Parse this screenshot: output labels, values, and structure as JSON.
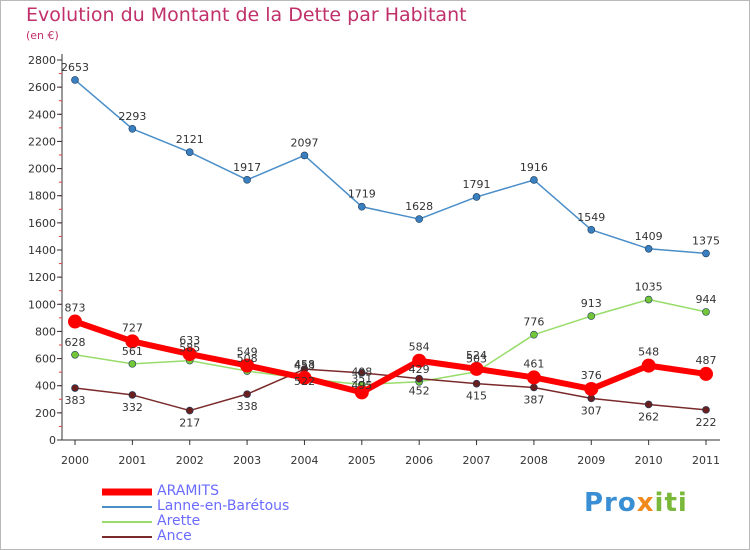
{
  "title": "Evolution du Montant de la Dette par Habitant",
  "subtitle": "(en €)",
  "logo": {
    "part1": "Pro",
    "part2": "x",
    "part3": "iti"
  },
  "chart_data": {
    "type": "line",
    "title": "Evolution du Montant de la Dette par Habitant",
    "ylabel": "(en €)",
    "xlabel": "",
    "ylim": [
      0,
      2800
    ],
    "yticks": [
      0,
      200,
      400,
      600,
      800,
      1000,
      1200,
      1400,
      1600,
      1800,
      2000,
      2200,
      2400,
      2600,
      2800
    ],
    "x": [
      "2000",
      "2001",
      "2002",
      "2003",
      "2004",
      "2005",
      "2006",
      "2007",
      "2008",
      "2009",
      "2010",
      "2011"
    ],
    "grid": false,
    "legend_position": "bottom-left",
    "series": [
      {
        "name": "Lanne-en-Barétous",
        "color": "#4a8ec8",
        "dot": "#3a7fc0",
        "values": [
          2653,
          2293,
          2121,
          1917,
          2097,
          1719,
          1628,
          1791,
          1916,
          1549,
          1409,
          1375
        ]
      },
      {
        "name": "Arette",
        "color": "#98dc6a",
        "dot": "#74c638",
        "values": [
          628,
          561,
          585,
          508,
          453,
          408,
          429,
          503,
          776,
          913,
          1035,
          944
        ]
      },
      {
        "name": "Ance",
        "color": "#7a2a2a",
        "dot": "#6a1f1f",
        "values": [
          383,
          332,
          217,
          338,
          522,
          495,
          452,
          415,
          387,
          307,
          262,
          222
        ]
      },
      {
        "name": "ARAMITS",
        "color": "#ff0000",
        "dot": "#ff0000",
        "values": [
          873,
          727,
          633,
          549,
          458,
          351,
          584,
          524,
          461,
          376,
          548,
          487
        ]
      }
    ],
    "legend_order": [
      "ARAMITS",
      "Lanne-en-Barétous",
      "Arette",
      "Ance"
    ]
  }
}
